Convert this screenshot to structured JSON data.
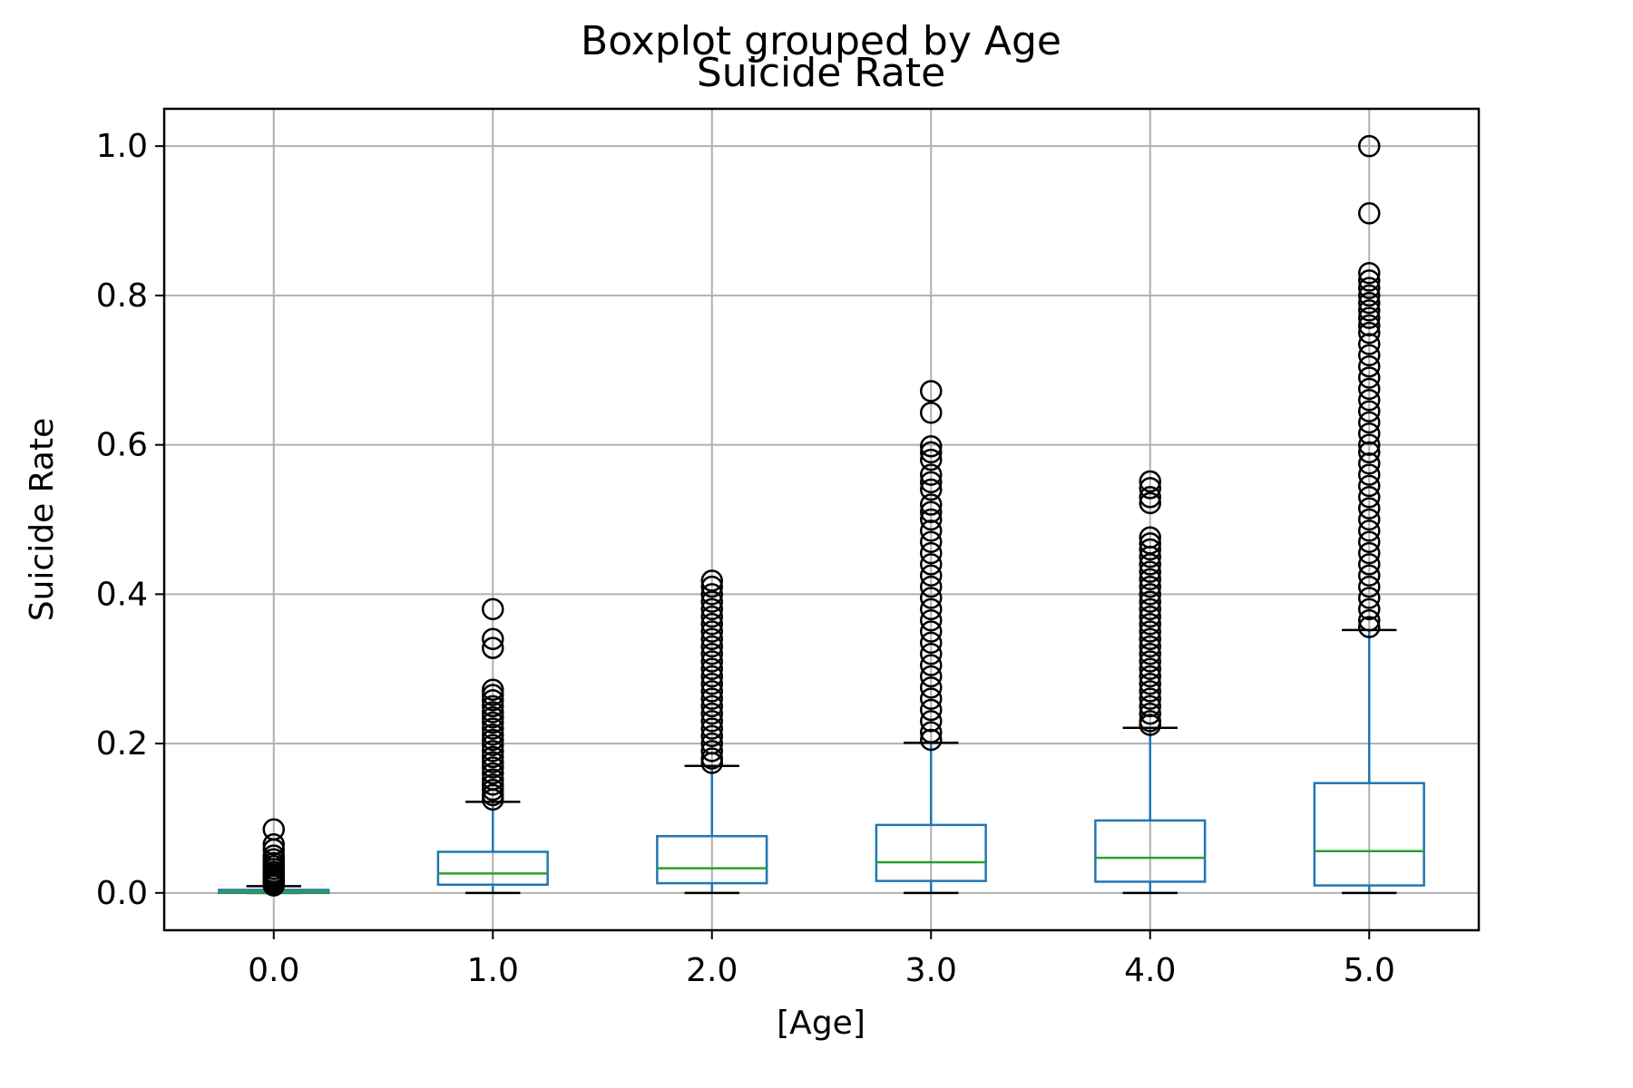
{
  "chart_data": {
    "type": "box",
    "suptitle": "Boxplot grouped by Age",
    "title": "Suicide Rate",
    "xlabel": "[Age]",
    "ylabel": "Suicide Rate",
    "ylim": [
      -0.05,
      1.05
    ],
    "grid": true,
    "y_ticks": [
      0.0,
      0.2,
      0.4,
      0.6,
      0.8,
      1.0
    ],
    "y_tick_labels": [
      "0.0",
      "0.2",
      "0.4",
      "0.6",
      "0.8",
      "1.0"
    ],
    "categories": [
      "0.0",
      "1.0",
      "2.0",
      "3.0",
      "4.0",
      "5.0"
    ],
    "colors": {
      "box": "#1f77b4",
      "median": "#2ca02c",
      "whisker": "#1f77b4",
      "cap": "#000000",
      "flier": "#000000",
      "grid": "#b0b0b0"
    },
    "boxes": [
      {
        "category": "0.0",
        "whislo": 0.0,
        "q1": 0.0,
        "median": 0.001,
        "q3": 0.004,
        "whishi": 0.009,
        "fliers": [
          0.085,
          0.065,
          0.058,
          0.05,
          0.045,
          0.04,
          0.036,
          0.032,
          0.028,
          0.025,
          0.022,
          0.019,
          0.016,
          0.014,
          0.012,
          0.01
        ]
      },
      {
        "category": "1.0",
        "whislo": 0.0,
        "q1": 0.011,
        "median": 0.026,
        "q3": 0.055,
        "whishi": 0.122,
        "fliers": [
          0.38,
          0.34,
          0.328,
          0.272,
          0.265,
          0.258,
          0.25,
          0.242,
          0.235,
          0.228,
          0.22,
          0.212,
          0.205,
          0.198,
          0.19,
          0.182,
          0.175,
          0.168,
          0.16,
          0.152,
          0.145,
          0.138,
          0.131,
          0.125
        ]
      },
      {
        "category": "2.0",
        "whislo": 0.0,
        "q1": 0.013,
        "median": 0.033,
        "q3": 0.076,
        "whishi": 0.17,
        "fliers": [
          0.418,
          0.41,
          0.4,
          0.39,
          0.38,
          0.37,
          0.36,
          0.35,
          0.34,
          0.33,
          0.32,
          0.31,
          0.3,
          0.29,
          0.28,
          0.27,
          0.26,
          0.25,
          0.24,
          0.23,
          0.22,
          0.21,
          0.2,
          0.19,
          0.18,
          0.174
        ]
      },
      {
        "category": "3.0",
        "whislo": 0.0,
        "q1": 0.016,
        "median": 0.041,
        "q3": 0.091,
        "whishi": 0.201,
        "fliers": [
          0.672,
          0.643,
          0.598,
          0.59,
          0.58,
          0.56,
          0.55,
          0.54,
          0.52,
          0.51,
          0.5,
          0.485,
          0.47,
          0.455,
          0.44,
          0.425,
          0.41,
          0.395,
          0.38,
          0.365,
          0.35,
          0.335,
          0.32,
          0.305,
          0.29,
          0.275,
          0.26,
          0.245,
          0.23,
          0.215,
          0.205
        ]
      },
      {
        "category": "4.0",
        "whislo": 0.0,
        "q1": 0.015,
        "median": 0.047,
        "q3": 0.097,
        "whishi": 0.221,
        "fliers": [
          0.551,
          0.542,
          0.53,
          0.522,
          0.476,
          0.468,
          0.46,
          0.45,
          0.44,
          0.43,
          0.42,
          0.41,
          0.4,
          0.39,
          0.38,
          0.37,
          0.36,
          0.35,
          0.34,
          0.33,
          0.32,
          0.31,
          0.3,
          0.29,
          0.28,
          0.27,
          0.26,
          0.25,
          0.24,
          0.23,
          0.225
        ]
      },
      {
        "category": "5.0",
        "whislo": 0.0,
        "q1": 0.01,
        "median": 0.056,
        "q3": 0.147,
        "whishi": 0.352,
        "fliers": [
          1.0,
          0.91,
          0.83,
          0.82,
          0.81,
          0.8,
          0.79,
          0.78,
          0.77,
          0.76,
          0.75,
          0.735,
          0.72,
          0.705,
          0.69,
          0.675,
          0.66,
          0.645,
          0.63,
          0.615,
          0.6,
          0.59,
          0.575,
          0.56,
          0.545,
          0.53,
          0.515,
          0.5,
          0.485,
          0.47,
          0.455,
          0.44,
          0.425,
          0.41,
          0.395,
          0.38,
          0.365,
          0.356
        ]
      }
    ]
  }
}
